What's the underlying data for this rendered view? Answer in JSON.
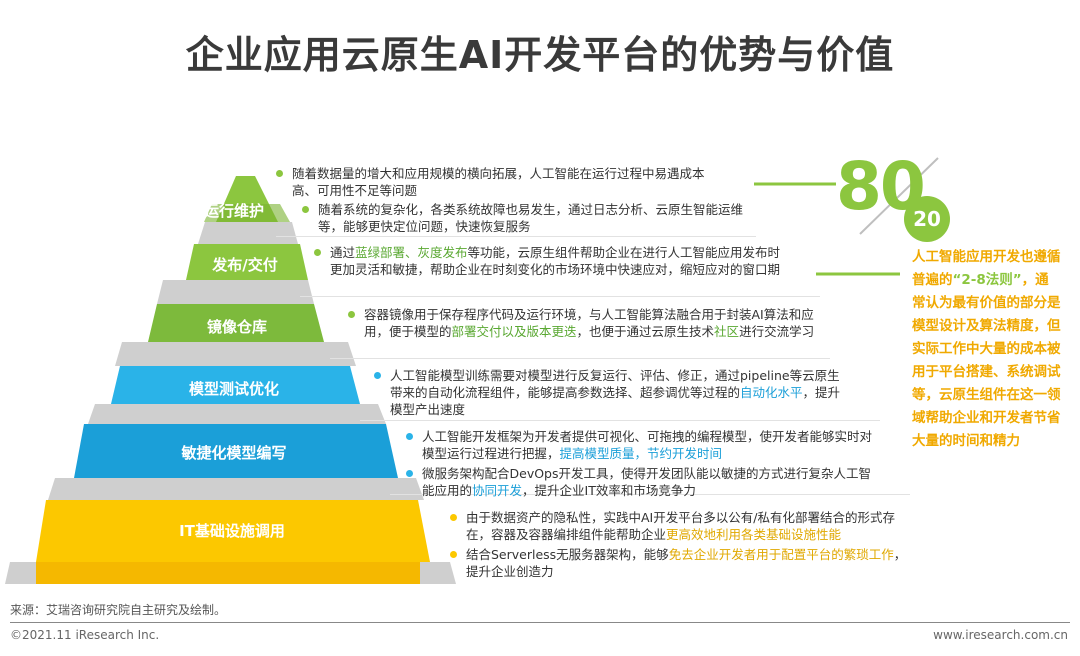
{
  "title": "企业应用云原生AI开发平台的优势与价值",
  "colors": {
    "green_light": "#8cc63f",
    "green_mid": "#7dba3c",
    "blue": "#2ab3e8",
    "blue_dark": "#1b9fd8",
    "yellow": "#fcc800",
    "orange_text": "#f0a900",
    "link_green": "#5aa832",
    "link_blue": "#1b9fd8",
    "link_yellow": "#e0a800"
  },
  "tiers": [
    {
      "label": "运行维护",
      "color": "#8cc63f",
      "bullet": "#8cc63f"
    },
    {
      "label": "发布/交付",
      "color": "#8cc63f",
      "bullet": "#8cc63f"
    },
    {
      "label": "镜像仓库",
      "color": "#7dba3c",
      "bullet": "#8cc63f"
    },
    {
      "label": "模型测试优化",
      "color": "#2ab3e8",
      "bullet": "#2ab3e8"
    },
    {
      "label": "敏捷化模型编写",
      "color": "#1b9fd8",
      "bullet": "#2ab3e8"
    },
    {
      "label": "IT基础设施调用",
      "color": "#fcc800",
      "bullet": "#fcc800"
    }
  ],
  "descriptions": {
    "t1a": {
      "text": "随着数据量的增大和应用规模的横向拓展，人工智能在运行过程中易遇成本高、可用性不足等问题"
    },
    "t1b": {
      "text": "随着系统的复杂化，各类系统故障也易发生，通过日志分析、云原生智能运维等，能够更快定位问题，快速恢复服务"
    },
    "t2": {
      "pre": "通过",
      "hl": "蓝绿部署、灰度发布",
      "post": "等功能，云原生组件帮助企业在进行人工智能应用发布时更加灵活和敏捷，帮助企业在时刻变化的市场环境中快速应对，缩短应对的窗口期"
    },
    "t3": {
      "pre": "容器镜像用于保存程序代码及运行环境，与人工智能算法融合用于封装AI算法和应用，便于模型的",
      "hl": "部署交付以及版本更迭",
      "mid": "，也便于通过云原生技术",
      "hl2": "社区",
      "post": "进行交流学习"
    },
    "t4": {
      "pre": "人工智能模型训练需要对模型进行反复运行、评估、修正，通过pipeline等云原生带来的自动化流程组件，能够提高参数选择、超参调优等过程的",
      "hl": "自动化水平",
      "post": "，提升模型产出速度"
    },
    "t5a": {
      "pre": "人工智能开发框架为开发者提供可视化、可拖拽的编程模型，使开发者能够实时对模型运行过程进行把握，",
      "hl": "提高模型质量，节约开发时间",
      "post": ""
    },
    "t5b": {
      "pre": "微服务架构配合DevOps开发工具，使得开发团队能以敏捷的方式进行复杂人工智能应用的",
      "hl": "协同开发",
      "post": "，提升企业IT效率和市场竞争力"
    },
    "t6a": {
      "pre": "由于数据资产的隐私性，实践中AI开发平台多以公有/私有化部署结合的形式存在，容器及容器编排组件能帮助企业",
      "hl": "更高效地利用各类基础设施性能",
      "post": ""
    },
    "t6b": {
      "pre": "结合Serverless无服务器架构，能够",
      "hl": "免去企业开发者用于配置平台的繁琐工作",
      "post": "，提升企业创造力"
    }
  },
  "rule": {
    "big_number": "80",
    "small_number": "20",
    "text_pre": "人工智能应用开发也遵循普遍的",
    "text_quote": "“2-8法则”",
    "text_post": "，通常认为最有价值的部分是模型设计及算法精度，但实际工作中大量的成本被用于平台搭建、系统调试等，云原生组件在这一领域帮助企业和开发者节省大量的时间和精力"
  },
  "source": "来源：艾瑞咨询研究院自主研究及绘制。",
  "footer": {
    "left": "©2021.11 iResearch Inc.",
    "right": "www.iresearch.com.cn"
  }
}
